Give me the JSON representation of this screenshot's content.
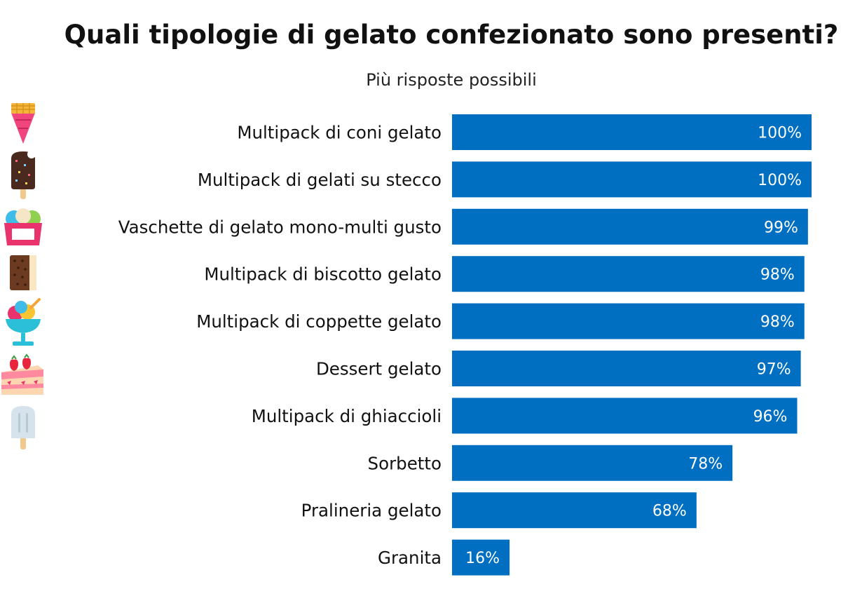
{
  "chart_data": {
    "type": "bar",
    "orientation": "horizontal",
    "title": "Quali tipologie di gelato confezionato sono presenti?",
    "subtitle": "Più risposte possibili",
    "categories": [
      "Multipack di coni gelato",
      "Multipack di gelati su stecco",
      "Vaschette di gelato mono-multi gusto",
      "Multipack di biscotto gelato",
      "Multipack di coppette gelato",
      "Dessert gelato",
      "Multipack di ghiaccioli",
      "Sorbetto",
      "Pralineria gelato",
      "Granita"
    ],
    "values": [
      100,
      100,
      99,
      98,
      98,
      97,
      96,
      78,
      68,
      16
    ],
    "value_labels": [
      "100%",
      "100%",
      "99%",
      "98%",
      "98%",
      "97%",
      "96%",
      "78%",
      "68%",
      "16%"
    ],
    "xlim": [
      0,
      100
    ],
    "unit": "%",
    "bar_color": "#006fc1",
    "grid": false,
    "legend": "none"
  },
  "decorations": {
    "icons": [
      "ice-cream-cone-icon",
      "chocolate-popsicle-icon",
      "ice-cream-tub-icon",
      "ice-cream-sandwich-icon",
      "sundae-cup-icon",
      "strawberry-cake-icon",
      "ice-pop-icon"
    ]
  }
}
